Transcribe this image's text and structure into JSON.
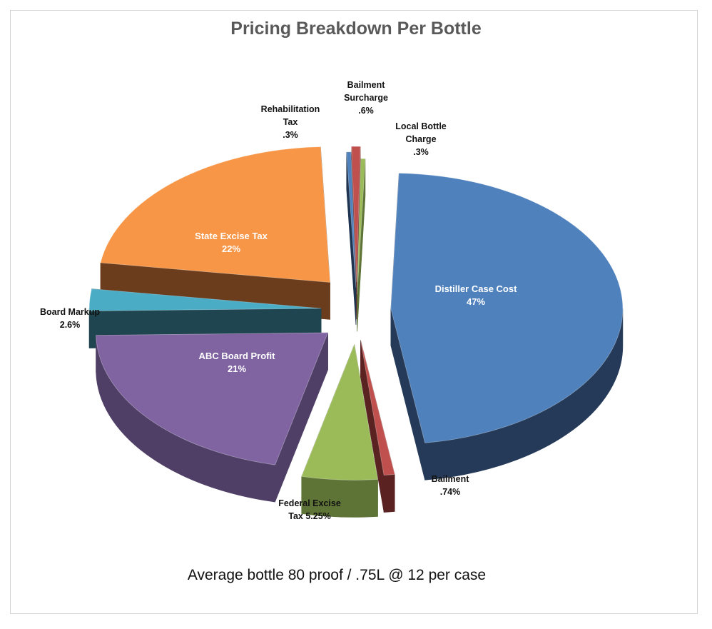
{
  "chart_data": {
    "type": "pie",
    "title": "Pricing Breakdown Per Bottle",
    "subtitle": "Average bottle 80 proof / .75L @ 12 per case",
    "three_d": true,
    "exploded": true,
    "legend": "none",
    "slices": [
      {
        "name": "Distiller Case Cost",
        "value": 47,
        "label_lines": [
          "Distiller Case Cost",
          "47%"
        ],
        "color": "#4F81BD",
        "side_color": "#243A58"
      },
      {
        "name": "Bailment",
        "value": 0.74,
        "label_lines": [
          "Bailment",
          ".74%"
        ],
        "color": "#C0504D",
        "side_color": "#5A2322"
      },
      {
        "name": "Federal Excise Tax",
        "value": 5.25,
        "label_lines": [
          "Federal Excise",
          "Tax  5.25%"
        ],
        "color": "#9BBB59",
        "side_color": "#5E7336"
      },
      {
        "name": "ABC Board Profit",
        "value": 21,
        "label_lines": [
          "ABC Board Profit",
          "21%"
        ],
        "color": "#8064A2",
        "side_color": "#4F3F66"
      },
      {
        "name": "Board Markup",
        "value": 2.6,
        "label_lines": [
          "Board Markup",
          "2.6%"
        ],
        "color": "#4BACC6",
        "side_color": "#1F4650"
      },
      {
        "name": "State Excise Tax",
        "value": 22,
        "label_lines": [
          "State Excise Tax",
          "22%"
        ],
        "color": "#F79646",
        "side_color": "#6B3D1C"
      },
      {
        "name": "Rehabilitation Tax",
        "value": 0.3,
        "label_lines": [
          "Rehabilitation",
          "Tax",
          ".3%"
        ],
        "color": "#4F81BD",
        "side_color": "#1F3450"
      },
      {
        "name": "Bailment Surcharge",
        "value": 0.6,
        "label_lines": [
          "Bailment",
          "Surcharge",
          ".6%"
        ],
        "color": "#C0504D",
        "side_color": "#6A2826"
      },
      {
        "name": "Local Bottle Charge",
        "value": 0.3,
        "label_lines": [
          "Local Bottle",
          "Charge",
          ".3%"
        ],
        "color": "#9BBB59",
        "side_color": "#5E7336"
      }
    ]
  }
}
